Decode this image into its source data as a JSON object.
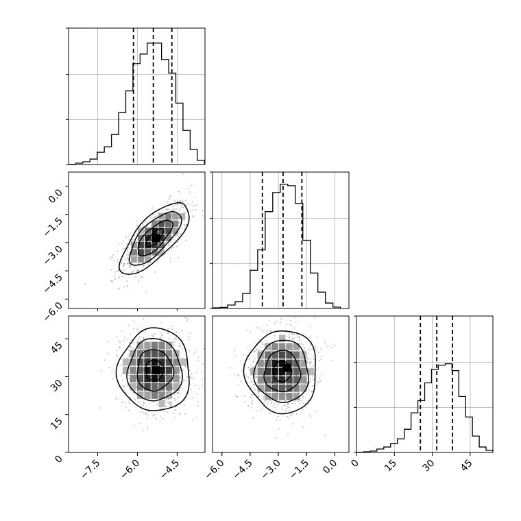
{
  "chart_data": {
    "type": "corner",
    "title": "",
    "parameters": [
      {
        "label": "",
        "range": [
          -8.6,
          -3.45
        ],
        "ticks": [
          "−7.5",
          "−6.0",
          "−4.5"
        ],
        "tick_values": [
          -7.5,
          -6.0,
          -4.5
        ]
      },
      {
        "label": "",
        "range": [
          -6.5,
          0.75
        ],
        "ticks": [
          "−6.0",
          "−4.5",
          "−3.0",
          "−1.5",
          "0.0"
        ],
        "tick_values": [
          -6.0,
          -4.5,
          -3.0,
          -1.5,
          0.0
        ]
      },
      {
        "label": "",
        "range": [
          0.0,
          54.0
        ],
        "ticks": [
          "0",
          "15",
          "30",
          "45"
        ],
        "tick_values": [
          0,
          15,
          30,
          45
        ]
      }
    ],
    "histograms": [
      {
        "parameter": 0,
        "bins": [
          -8.6,
          -8.33,
          -8.06,
          -7.79,
          -7.52,
          -7.25,
          -6.98,
          -6.71,
          -6.44,
          -6.17,
          -5.9,
          -5.63,
          -5.36,
          -5.09,
          -4.82,
          -4.55,
          -4.28,
          -4.01,
          -3.74,
          -3.47
        ],
        "counts": [
          0.2,
          1.0,
          2.0,
          4.0,
          9.0,
          13.0,
          22.0,
          38.0,
          54.0,
          74.0,
          81.0,
          89.0,
          89.0,
          77.0,
          67.0,
          45.0,
          25.0,
          11.0,
          3.0
        ],
        "quantiles": [
          -6.15,
          -5.4,
          -4.7
        ],
        "ylim": [
          0,
          100
        ]
      },
      {
        "parameter": 1,
        "bins": [
          -6.5,
          -6.1,
          -5.7,
          -5.3,
          -4.9,
          -4.5,
          -4.1,
          -3.7,
          -3.3,
          -2.9,
          -2.5,
          -2.1,
          -1.7,
          -1.3,
          -0.9,
          -0.5,
          -0.1,
          0.3
        ],
        "counts": [
          0.5,
          0.8,
          2.5,
          5.0,
          11.0,
          28.0,
          43.0,
          71.0,
          85.0,
          91.0,
          90.0,
          77.0,
          50.0,
          26.0,
          12.0,
          4.0,
          1.0
        ],
        "quantiles": [
          -3.85,
          -2.75,
          -1.75
        ],
        "ylim": [
          0,
          100
        ]
      },
      {
        "parameter": 2,
        "bins": [
          0,
          2.7,
          5.4,
          8.1,
          10.8,
          13.5,
          16.2,
          18.9,
          21.6,
          24.3,
          27.0,
          29.7,
          32.4,
          35.1,
          37.8,
          40.5,
          43.2,
          45.9,
          48.6,
          51.3,
          54.0
        ],
        "counts": [
          0.2,
          0.5,
          1.0,
          2.5,
          4.0,
          6.5,
          10.0,
          17.0,
          29.0,
          38.0,
          51.0,
          61.0,
          64.0,
          65.0,
          60.0,
          41.0,
          26.0,
          12.0,
          4.0,
          1.5
        ],
        "quantiles": [
          25.3,
          31.8,
          38.0
        ],
        "ylim": [
          0,
          100
        ]
      }
    ],
    "joint_plots": [
      {
        "x": 0,
        "y": 1,
        "mean": [
          -5.35,
          -2.75
        ],
        "std": [
          0.65,
          0.95
        ],
        "correlation": 0.72,
        "contour_levels_sigma": [
          0.5,
          1.0,
          1.5,
          2.0
        ],
        "peak": [
          -5.3,
          -2.75
        ]
      },
      {
        "x": 0,
        "y": 2,
        "mean": [
          -5.35,
          32.5
        ],
        "std": [
          0.68,
          8.2
        ],
        "correlation": 0.0,
        "contour_levels_sigma": [
          0.5,
          1.0,
          1.5,
          2.0
        ],
        "peak": [
          -5.3,
          32.5
        ]
      },
      {
        "x": 1,
        "y": 2,
        "mean": [
          -2.8,
          32.0
        ],
        "std": [
          0.95,
          8.2
        ],
        "correlation": 0.0,
        "contour_levels_sigma": [
          0.5,
          1.0,
          1.5,
          2.0
        ],
        "peak": [
          -2.55,
          33.5
        ]
      }
    ],
    "grid": true,
    "legend": "none"
  }
}
